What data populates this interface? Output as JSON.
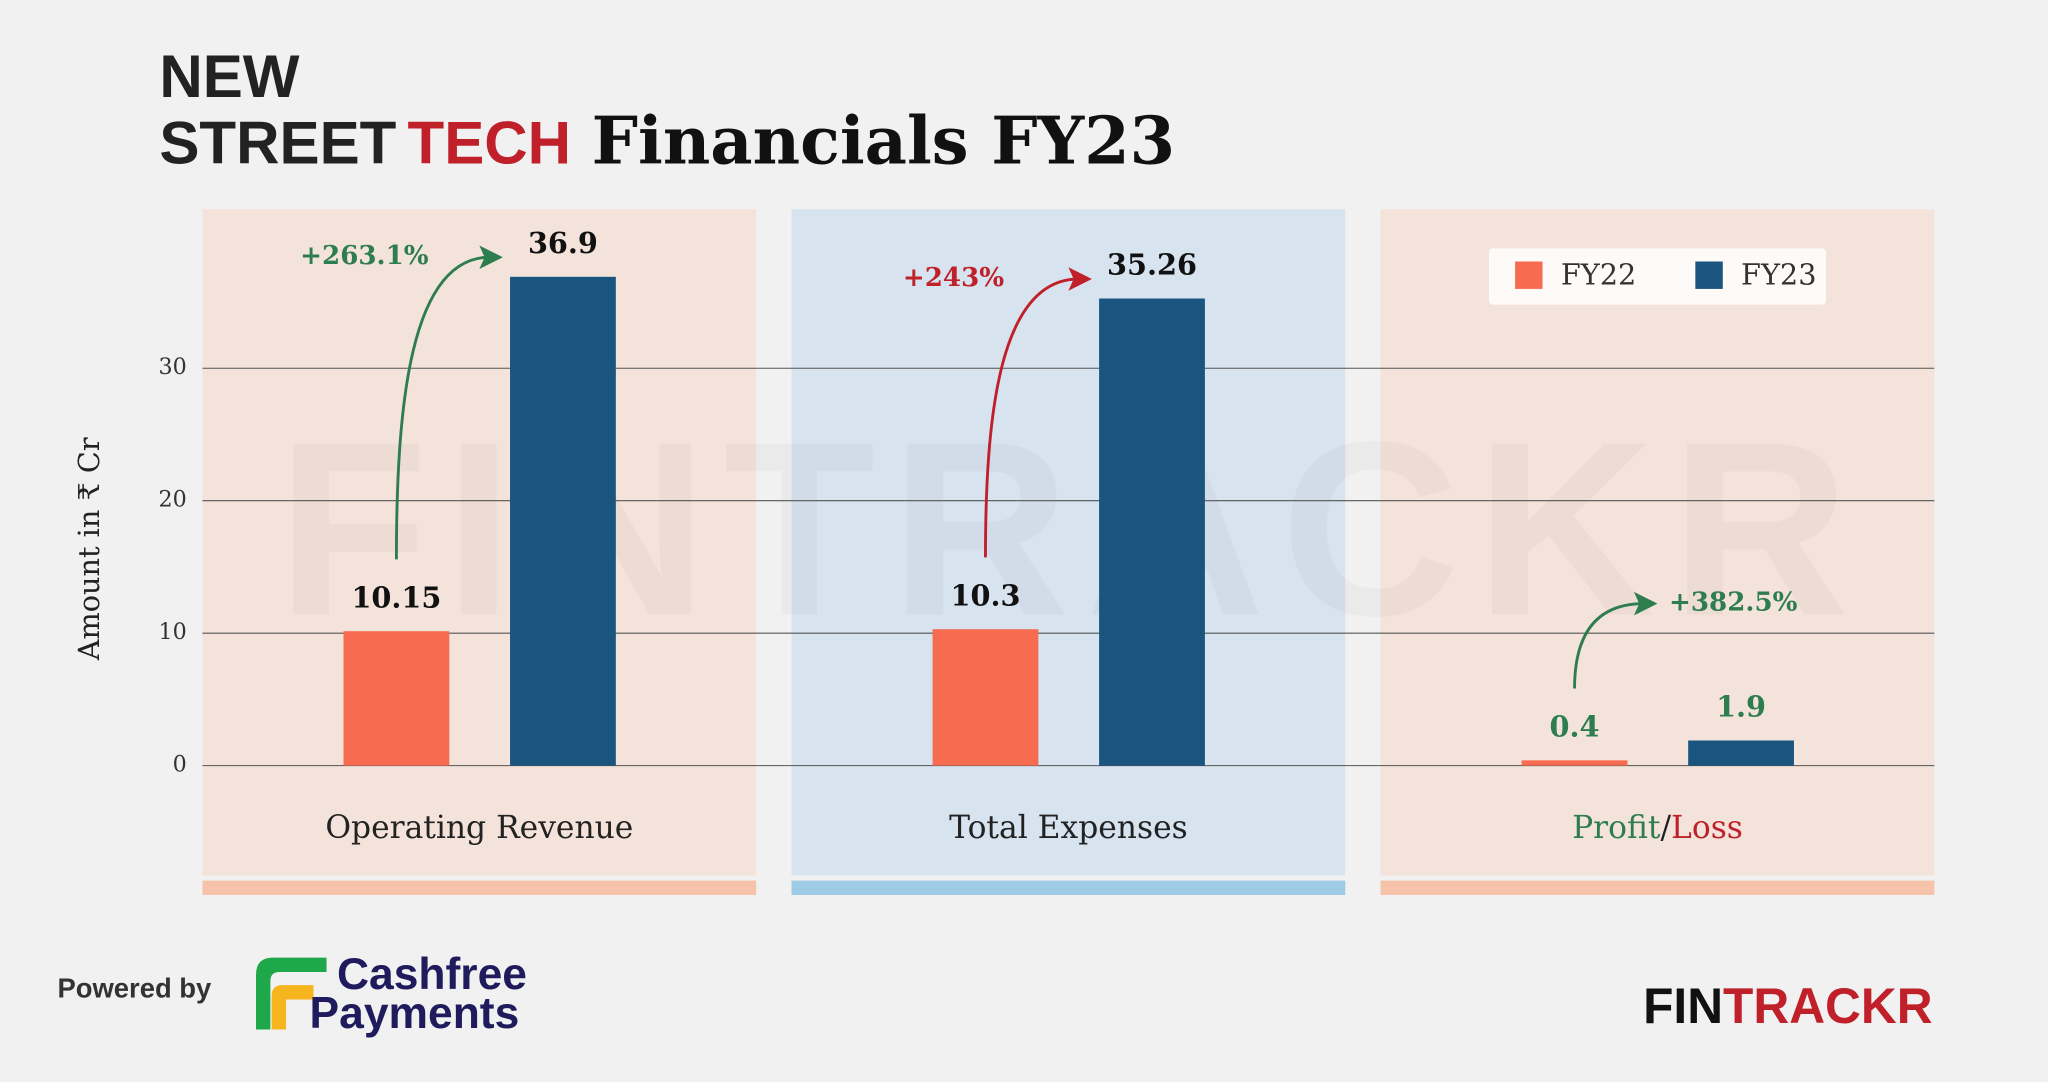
{
  "brand": {
    "line1": "NEW",
    "line2a": "STREET",
    "line2b": "TECH"
  },
  "powered_by": "Powered by",
  "sponsor": {
    "line1": "Cashfree",
    "line2": "Payments"
  },
  "watermark": "FINTRACKR",
  "footer_logo": {
    "part1": "FIN",
    "part2": "TRACKR"
  },
  "chart_data": {
    "type": "bar",
    "title": "Financials FY23",
    "y_label": "Amount in ₹ Cr",
    "categories": [
      "Operating Revenue",
      "Total Expenses",
      "Profit/Loss"
    ],
    "series": [
      {
        "name": "FY22",
        "color": "#f76c50",
        "values": [
          10.15,
          10.3,
          0.4
        ]
      },
      {
        "name": "FY23",
        "color": "#1a5580",
        "values": [
          36.9,
          35.26,
          1.9
        ]
      }
    ],
    "annotations": [
      {
        "text": "+263.1%",
        "color": "#2e7d4f"
      },
      {
        "text": "+243%",
        "color": "#c0202a"
      },
      {
        "text": "+382.5%",
        "color": "#2e7d4f"
      }
    ],
    "value_label_colors": [
      "#111111",
      "#111111",
      "#2e7d4f"
    ],
    "panel_colors": [
      "#f5e1d6",
      "#d2e1ef",
      "#f5e1d6"
    ],
    "panel_strip_colors": [
      "#f6c3aa",
      "#9ecbe6",
      "#f6c3aa"
    ],
    "ylim": [
      0,
      42
    ],
    "yticks": [
      0,
      10,
      20,
      30
    ],
    "grid": true,
    "legend": "top-right"
  }
}
